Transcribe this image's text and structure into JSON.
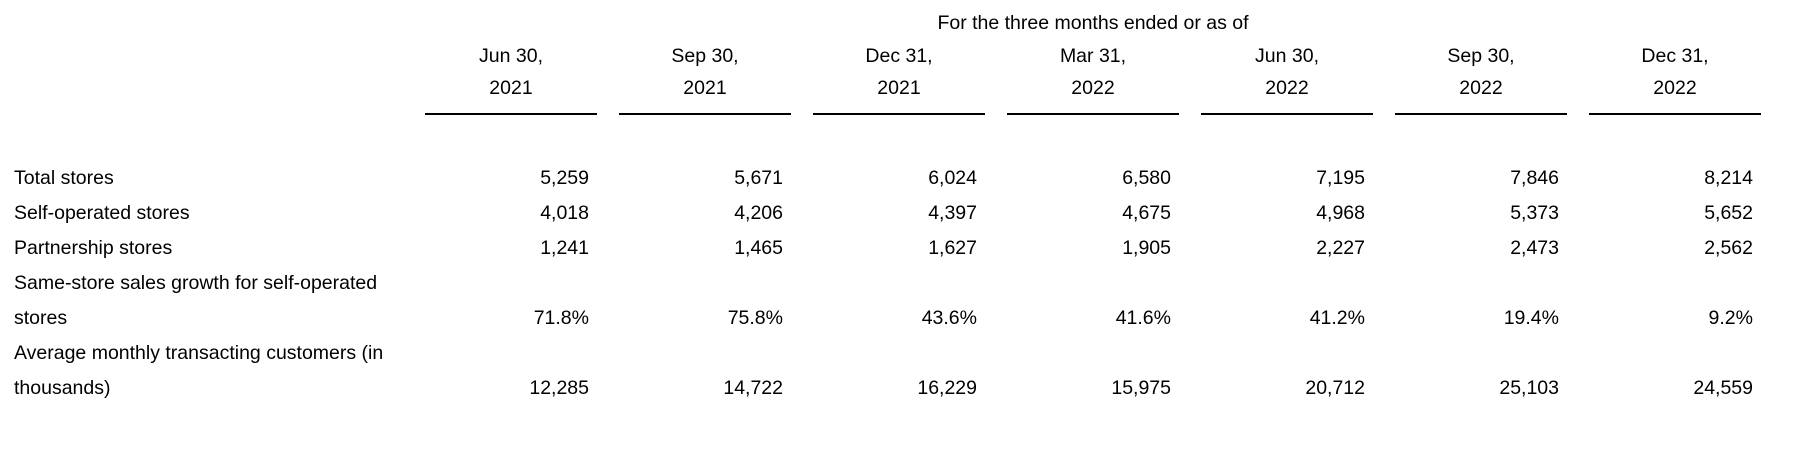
{
  "table": {
    "title": "For the three months ended or as of",
    "columns": [
      {
        "month": "Jun 30,",
        "year": "2021"
      },
      {
        "month": "Sep 30,",
        "year": "2021"
      },
      {
        "month": "Dec 31,",
        "year": "2021"
      },
      {
        "month": "Mar 31,",
        "year": "2022"
      },
      {
        "month": "Jun 30,",
        "year": "2022"
      },
      {
        "month": "Sep 30,",
        "year": "2022"
      },
      {
        "month": "Dec 31,",
        "year": "2022"
      }
    ],
    "rows": [
      {
        "label": "Total stores",
        "values": [
          "5,259",
          "5,671",
          "6,024",
          "6,580",
          "7,195",
          "7,846",
          "8,214"
        ]
      },
      {
        "label": "Self-operated stores",
        "values": [
          "4,018",
          "4,206",
          "4,397",
          "4,675",
          "4,968",
          "5,373",
          "5,652"
        ]
      },
      {
        "label": "Partnership stores",
        "values": [
          "1,241",
          "1,465",
          "1,627",
          "1,905",
          "2,227",
          "2,473",
          "2,562"
        ]
      },
      {
        "label": "Same-store sales growth for self-operated stores",
        "values": [
          "71.8%",
          "75.8%",
          "43.6%",
          "41.6%",
          "41.2%",
          "19.4%",
          "9.2%"
        ]
      },
      {
        "label": "Average monthly transacting customers (in thousands)",
        "values": [
          "12,285",
          "14,722",
          "16,229",
          "15,975",
          "20,712",
          "25,103",
          "24,559"
        ]
      }
    ],
    "colors": {
      "text": "#000000",
      "rule": "#000000",
      "background": "#ffffff"
    }
  }
}
